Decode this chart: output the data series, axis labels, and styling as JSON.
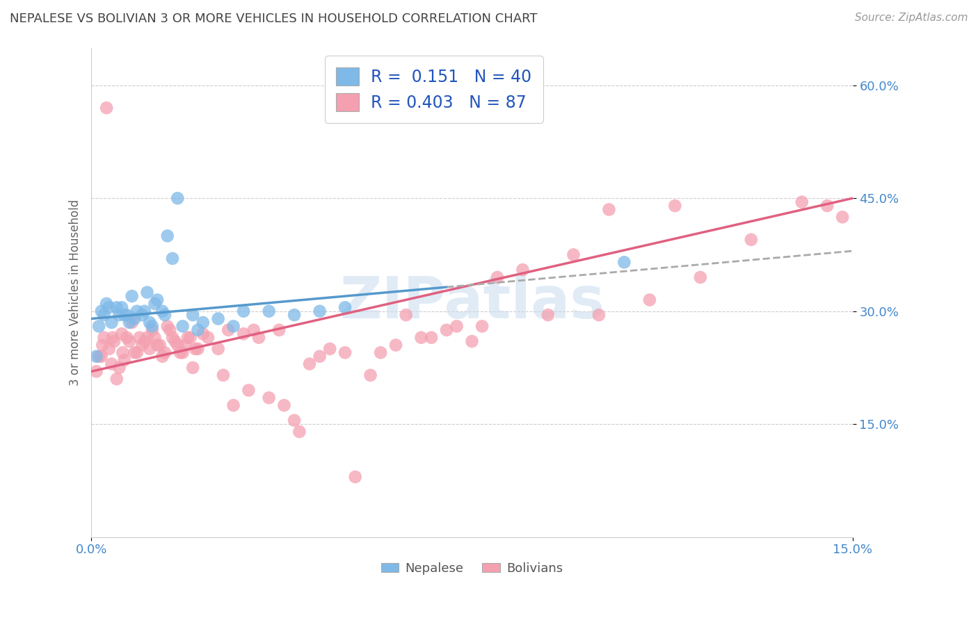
{
  "title": "NEPALESE VS BOLIVIAN 3 OR MORE VEHICLES IN HOUSEHOLD CORRELATION CHART",
  "source": "Source: ZipAtlas.com",
  "ylabel": "3 or more Vehicles in Household",
  "watermark": "ZIPatlas",
  "nepalese_R": 0.151,
  "nepalese_N": 40,
  "bolivian_R": 0.403,
  "bolivian_N": 87,
  "xlim": [
    0.0,
    15.0
  ],
  "ylim": [
    0.0,
    65.0
  ],
  "yticks": [
    15.0,
    30.0,
    45.0,
    60.0
  ],
  "grid_color": "#cccccc",
  "background_color": "#ffffff",
  "nepalese_color": "#7EB9E8",
  "bolivian_color": "#F4A0B0",
  "nepalese_line_color": "#5599CC",
  "bolivian_line_color": "#E06080",
  "title_color": "#444444",
  "source_color": "#999999",
  "axis_label_color": "#666666",
  "tick_label_color_blue": "#4488CC",
  "legend_N_color": "#2255BB",
  "nepalese_line_x0": 0.0,
  "nepalese_line_y0": 29.0,
  "nepalese_line_x1": 15.0,
  "nepalese_line_y1": 38.0,
  "bolivian_line_x0": 0.0,
  "bolivian_line_y0": 22.0,
  "bolivian_line_x1": 15.0,
  "bolivian_line_y1": 45.0,
  "nepalese_x": [
    0.2,
    0.3,
    0.5,
    0.7,
    0.8,
    0.9,
    1.0,
    1.1,
    1.2,
    1.3,
    1.4,
    1.5,
    1.6,
    1.7,
    1.8,
    2.0,
    2.2,
    2.5,
    2.8,
    3.0,
    3.5,
    4.0,
    4.5,
    5.0,
    0.1,
    0.15,
    0.25,
    0.35,
    0.55,
    0.65,
    0.75,
    0.85,
    1.05,
    1.25,
    1.45,
    2.1,
    0.4,
    0.6,
    1.15,
    10.5
  ],
  "nepalese_y": [
    30.0,
    31.0,
    30.5,
    29.5,
    32.0,
    30.0,
    29.5,
    32.5,
    28.0,
    31.5,
    30.0,
    40.0,
    37.0,
    45.0,
    28.0,
    29.5,
    28.5,
    29.0,
    28.0,
    30.0,
    30.0,
    29.5,
    30.0,
    30.5,
    24.0,
    28.0,
    29.5,
    30.5,
    29.5,
    29.5,
    28.5,
    29.0,
    30.0,
    31.0,
    29.5,
    27.5,
    28.5,
    30.5,
    28.5,
    36.5
  ],
  "bolivian_x": [
    0.1,
    0.2,
    0.3,
    0.4,
    0.5,
    0.6,
    0.7,
    0.8,
    0.9,
    1.0,
    1.1,
    1.2,
    1.3,
    1.4,
    1.5,
    1.6,
    1.7,
    1.8,
    1.9,
    2.0,
    2.1,
    2.3,
    2.5,
    2.7,
    3.0,
    3.2,
    3.5,
    4.0,
    4.5,
    5.0,
    5.5,
    6.0,
    6.5,
    7.0,
    7.5,
    8.0,
    9.0,
    10.0,
    11.0,
    0.15,
    0.25,
    0.35,
    0.45,
    0.55,
    0.65,
    0.75,
    0.85,
    0.95,
    1.05,
    1.15,
    1.25,
    1.35,
    1.45,
    1.55,
    1.65,
    1.75,
    1.85,
    1.95,
    2.05,
    2.2,
    2.6,
    2.8,
    3.1,
    3.3,
    3.7,
    4.1,
    4.3,
    4.7,
    5.2,
    5.7,
    6.2,
    6.7,
    7.2,
    7.7,
    8.5,
    9.5,
    10.2,
    11.5,
    12.0,
    13.0,
    14.0,
    14.5,
    14.8,
    0.22,
    0.42,
    0.62,
    3.8
  ],
  "bolivian_y": [
    22.0,
    24.0,
    57.0,
    23.0,
    21.0,
    27.0,
    26.5,
    28.5,
    24.5,
    25.5,
    26.5,
    27.5,
    25.5,
    24.0,
    28.0,
    26.5,
    25.5,
    24.5,
    26.5,
    22.5,
    25.0,
    26.5,
    25.0,
    27.5,
    27.0,
    27.5,
    18.5,
    15.5,
    24.0,
    24.5,
    21.5,
    25.5,
    26.5,
    27.5,
    26.0,
    34.5,
    29.5,
    29.5,
    31.5,
    24.0,
    26.5,
    25.0,
    26.0,
    22.5,
    23.5,
    26.0,
    24.5,
    26.5,
    26.0,
    25.0,
    26.5,
    25.5,
    24.5,
    27.5,
    26.0,
    24.5,
    25.5,
    26.5,
    25.0,
    27.0,
    21.5,
    17.5,
    19.5,
    26.5,
    27.5,
    14.0,
    23.0,
    25.0,
    8.0,
    24.5,
    29.5,
    26.5,
    28.0,
    28.0,
    35.5,
    37.5,
    43.5,
    44.0,
    34.5,
    39.5,
    44.5,
    44.0,
    42.5,
    25.5,
    26.5,
    24.5,
    17.5
  ]
}
